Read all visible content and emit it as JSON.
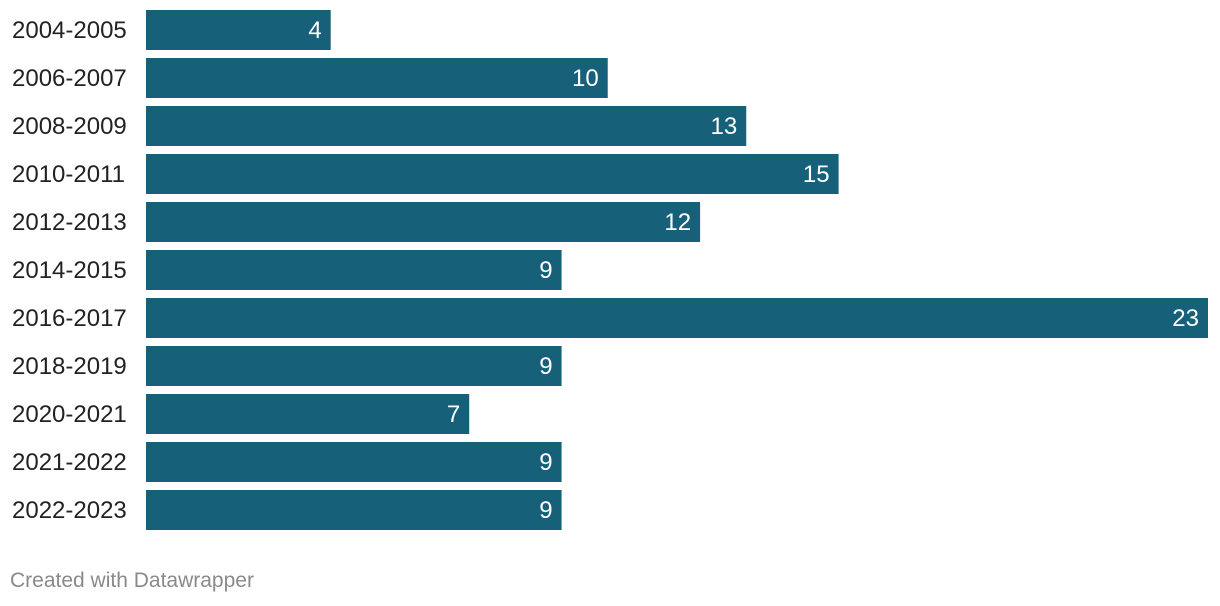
{
  "chart_data": {
    "type": "bar",
    "orientation": "horizontal",
    "categories": [
      "2004-2005",
      "2006-2007",
      "2008-2009",
      "2010-2011",
      "2012-2013",
      "2014-2015",
      "2016-2017",
      "2018-2019",
      "2020-2021",
      "2021-2022",
      "2022-2023"
    ],
    "values": [
      4,
      10,
      13,
      15,
      12,
      9,
      23,
      9,
      7,
      9,
      9
    ],
    "value_labels": [
      "4",
      "10",
      "13",
      "15",
      "12",
      "9",
      "23",
      "9",
      "7",
      "9",
      "9"
    ],
    "title": "",
    "xlabel": "",
    "ylabel": "",
    "xlim": [
      0,
      23
    ],
    "grid": false,
    "bar_color": "#17607a",
    "value_label_color": "#ffffff"
  },
  "footer": {
    "credit": "Created with Datawrapper"
  }
}
